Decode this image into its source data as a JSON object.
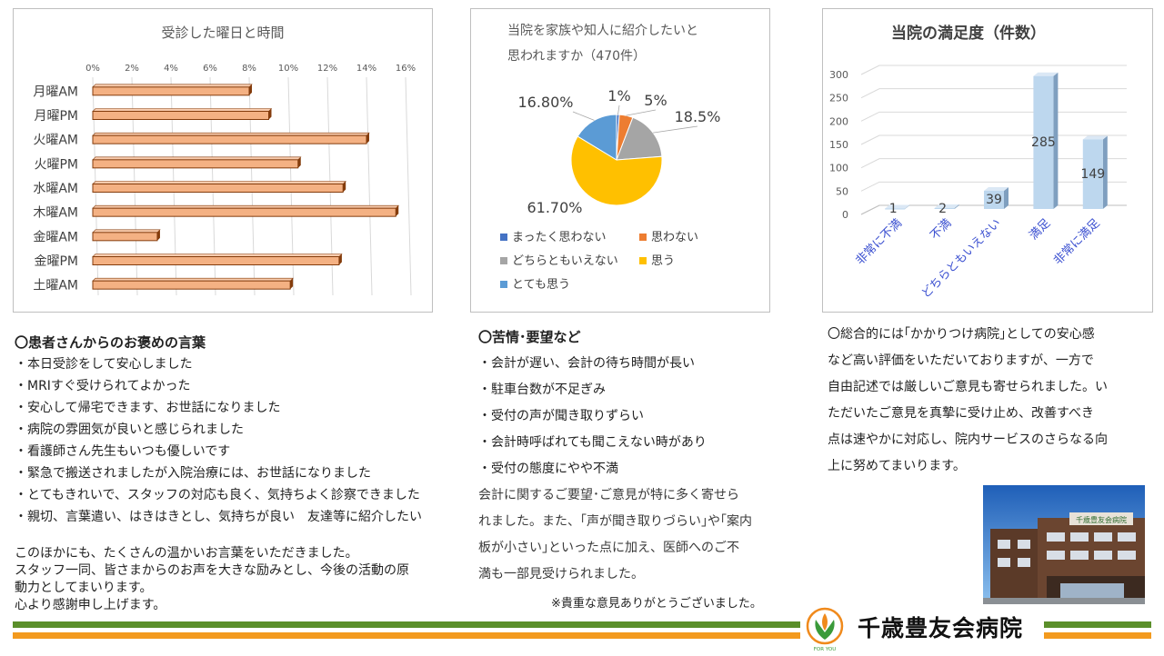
{
  "chart_data": [
    {
      "type": "bar",
      "orientation": "horizontal",
      "title": "受診した曜日と時間",
      "categories": [
        "月曜AM",
        "月曜PM",
        "火曜AM",
        "火曜PM",
        "水曜AM",
        "木曜AM",
        "金曜AM",
        "金曜PM",
        "土曜AM"
      ],
      "values": [
        8.0,
        9.0,
        14.0,
        10.5,
        12.8,
        15.5,
        3.3,
        12.6,
        10.1
      ],
      "unit": "%",
      "xlim": [
        0,
        16
      ],
      "ticks": [
        "0%",
        "2%",
        "4%",
        "6%",
        "8%",
        "10%",
        "12%",
        "14%",
        "16%"
      ],
      "grid": true,
      "bar_color": "#f4b183",
      "bar_edge": "#843c0c"
    },
    {
      "type": "pie",
      "title": "当院を家族や知人に紹介したいと思われますか（470件）",
      "title_lines": [
        "当院を家族や知人に紹介したいと",
        "思われますか（470件）"
      ],
      "labels": [
        "まったく思わない",
        "思わない",
        "どちらともいえない",
        "思う",
        "とても思う"
      ],
      "values": [
        1,
        5,
        18.5,
        61.7,
        16.8
      ],
      "data_labels": [
        "1%",
        "5%",
        "18.5%",
        "61.70%",
        "16.80%"
      ],
      "colors": [
        "#4472c4",
        "#ed7d31",
        "#a5a5a5",
        "#ffc000",
        "#5b9bd5"
      ],
      "legend": "bottom"
    },
    {
      "type": "bar",
      "title": "当院の満足度（件数）",
      "categories": [
        "非常に不満",
        "不満",
        "どちらともいえない",
        "満足",
        "非常に満足"
      ],
      "values": [
        1,
        2,
        39,
        285,
        149
      ],
      "data_labels": [
        "1",
        "2",
        "39",
        "285",
        "149"
      ],
      "ylim": [
        0,
        300
      ],
      "ticks": [
        "0",
        "50",
        "100",
        "150",
        "200",
        "250",
        "300"
      ],
      "grid": true,
      "bar_color": "#bdd7ee"
    }
  ],
  "praise": {
    "heading": "〇患者さんからのお褒めの言葉",
    "items": [
      "・本日受診をして安心しました",
      "・MRIすぐ受けられてよかった",
      "・安心して帰宅できます、お世話になりました",
      "・病院の雰囲気が良いと感じられました",
      "・看護師さん先生もいつも優しいです",
      "・緊急で搬送されましたが入院治療には、お世話になりました",
      "・とてもきれいで、スタッフの対応も良く、気持ちよく診察できました",
      "・親切、言葉遣い、はきはきとし、気持ちが良い　友達等に紹介したい"
    ],
    "closing": [
      "このほかにも、たくさんの温かいお言葉をいただきました。",
      "スタッフ一同、皆さまからのお声を大きな励みとし、今後の活動の原",
      "動力としてまいります。",
      "心より感謝申し上げます。"
    ]
  },
  "complaints": {
    "heading": "〇苦情･要望など",
    "items": [
      "・会計が遅い、会計の待ち時間が長い",
      "・駐車台数が不足ぎみ",
      "・受付の声が聞き取りずらい",
      "・会計時呼ばれても聞こえない時があり",
      "・受付の態度にやや不満"
    ],
    "summary": [
      "会計に関するご要望･ご意見が特に多く寄せら",
      "れました。また、｢声が聞き取りづらい｣や｢案内",
      "板が小さい｣といった点に加え、医師へのご不",
      "満も一部見受けられました。"
    ],
    "thanks": "※貴重な意見ありがとうございました。"
  },
  "overall": {
    "lines": [
      "〇総合的には｢かかりつけ病院｣としての安心感",
      "など高い評価をいただいておりますが、一方で",
      "自由記述では厳しいご意見も寄せられました。い",
      "ただいたご意見を真摯に受け止め、改善すべき",
      "点は速やかに対応し、院内サービスのさらなる向",
      "上に努めてまいります。"
    ]
  },
  "footer": {
    "hospital_name": "千歳豊友会病院",
    "logo_caption": "FOR YOU",
    "building_sign": "千歳豊友会病院"
  },
  "colors": {
    "green_band": "#5b8f2a",
    "orange_band": "#f39a1e",
    "logo_green": "#3a9a3a",
    "logo_orange": "#f08a1c"
  }
}
